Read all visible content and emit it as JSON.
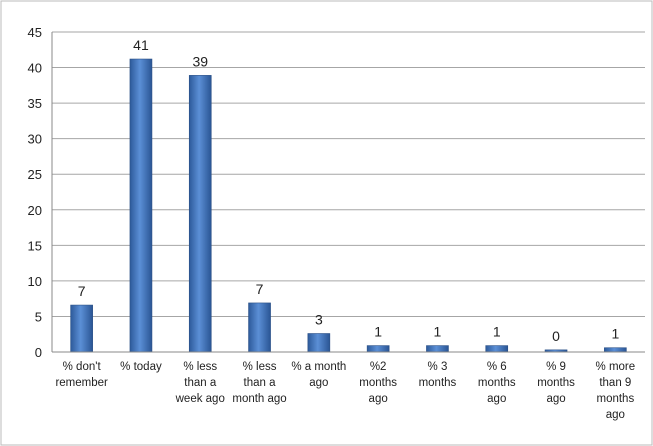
{
  "chart_data": {
    "type": "bar",
    "categories": [
      "% don't\nremember",
      "% today",
      "% less\nthan a\nweek ago",
      "% less\nthan a\nmonth ago",
      "% a month\nago",
      "%2\nmonths\nago",
      "% 3\nmonths",
      "% 6\nmonths\nago",
      "% 9\nmonths\nago",
      "% more\nthan 9\nmonths\nago"
    ],
    "values": [
      6.6,
      41.2,
      38.9,
      6.9,
      2.6,
      0.9,
      0.9,
      0.9,
      0.3,
      0.6
    ],
    "value_labels": [
      "7",
      "41",
      "39",
      "7",
      "3",
      "1",
      "1",
      "1",
      "0",
      "1"
    ],
    "color": "#3f74bd",
    "ylim": [
      0,
      45
    ],
    "yticks": [
      0,
      5,
      10,
      15,
      20,
      25,
      30,
      35,
      40,
      45
    ],
    "grid": true
  }
}
